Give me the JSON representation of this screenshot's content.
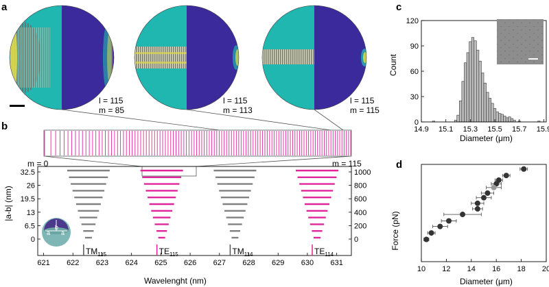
{
  "panels": {
    "a": "a",
    "b": "b",
    "c": "c",
    "d": "d"
  },
  "panel_a": {
    "modes": [
      {
        "l_label": "l = 115",
        "m_label": "m = 85"
      },
      {
        "l_label": "l = 115",
        "m_label": "m = 113"
      },
      {
        "l_label": "l = 115",
        "m_label": "m = 115"
      }
    ],
    "colors": {
      "teal": "#1fb7b0",
      "purple": "#3b2a9c",
      "yellow": "#e8e040"
    }
  },
  "panel_b": {
    "m_start": "m = 0",
    "m_end": "m = 115",
    "spectrum_lines": 116,
    "spectrum_color": "#e0259b",
    "ylabel_left": "|a-b| (nm)",
    "yticks_left": [
      "32.5",
      "26",
      "19.5",
      "13",
      "6.5",
      "0"
    ],
    "yticks_right": [
      "1000",
      "800",
      "600",
      "400",
      "200",
      "0"
    ],
    "xlabel": "Wavelenght (nm)",
    "xticks": [
      "621",
      "622",
      "623",
      "624",
      "625",
      "626",
      "627",
      "628",
      "629",
      "630",
      "631"
    ],
    "groups": [
      {
        "label": "TM",
        "sub": "115",
        "color": "#808080",
        "center": 622.6
      },
      {
        "label": "TE",
        "sub": "115",
        "color": "#e0259b",
        "center": 625.1
      },
      {
        "label": "TM",
        "sub": "114",
        "color": "#808080",
        "center": 627.6
      },
      {
        "label": "TE",
        "sub": "114",
        "color": "#e0259b",
        "center": 630.4
      }
    ],
    "inset_labels": [
      "b",
      "a",
      "a"
    ]
  },
  "chart_data": [
    {
      "type": "bar",
      "panel": "c",
      "xlabel": "Diameter (μm)",
      "ylabel": "Count",
      "xticks": [
        "14.9",
        "15.1",
        "15.3",
        "15.5",
        "15.7",
        "15.9"
      ],
      "yticks": [
        "0",
        "30",
        "60",
        "90",
        "120"
      ],
      "xlim": [
        14.9,
        15.92
      ],
      "ylim": [
        0,
        120
      ],
      "bin_width": 0.02,
      "bin_starts": [
        14.99,
        15.17,
        15.19,
        15.21,
        15.23,
        15.25,
        15.27,
        15.29,
        15.31,
        15.33,
        15.35,
        15.37,
        15.39,
        15.41,
        15.43,
        15.45,
        15.47,
        15.49,
        15.51,
        15.53,
        15.55,
        15.57,
        15.59,
        15.61,
        15.63,
        15.65,
        15.69,
        15.85
      ],
      "values": [
        1,
        2,
        8,
        25,
        48,
        70,
        82,
        95,
        100,
        96,
        85,
        72,
        58,
        46,
        35,
        28,
        22,
        16,
        12,
        10,
        9,
        7,
        5,
        6,
        4,
        2,
        1,
        1
      ]
    },
    {
      "type": "scatter",
      "panel": "d",
      "xlabel": "Diameter (μm)",
      "ylabel": "Force (pN)",
      "xticks": [
        "10",
        "12",
        "14",
        "16",
        "18",
        "20"
      ],
      "xlim": [
        10,
        20
      ],
      "points": [
        {
          "x": 18.2,
          "y": 100,
          "xerr": 0.3
        },
        {
          "x": 16.8,
          "y": 93,
          "xerr": 0.3
        },
        {
          "x": 16.2,
          "y": 88,
          "xerr": 0.3
        },
        {
          "x": 16.0,
          "y": 84,
          "xerr": 0.4
        },
        {
          "x": 15.8,
          "y": 80,
          "xerr": 0.6
        },
        {
          "x": 15.3,
          "y": 74,
          "xerr": 0.5
        },
        {
          "x": 15.0,
          "y": 69,
          "xerr": 0.6
        },
        {
          "x": 14.5,
          "y": 63,
          "xerr": 0.5
        },
        {
          "x": 14.5,
          "y": 57,
          "xerr": 0.4
        },
        {
          "x": 13.3,
          "y": 51,
          "xerr": 1.5
        },
        {
          "x": 12.2,
          "y": 44,
          "xerr": 0.6
        },
        {
          "x": 11.5,
          "y": 38,
          "xerr": 0.6
        },
        {
          "x": 10.8,
          "y": 31,
          "xerr": 0.3
        },
        {
          "x": 10.4,
          "y": 24,
          "xerr": 0.2
        }
      ]
    }
  ]
}
